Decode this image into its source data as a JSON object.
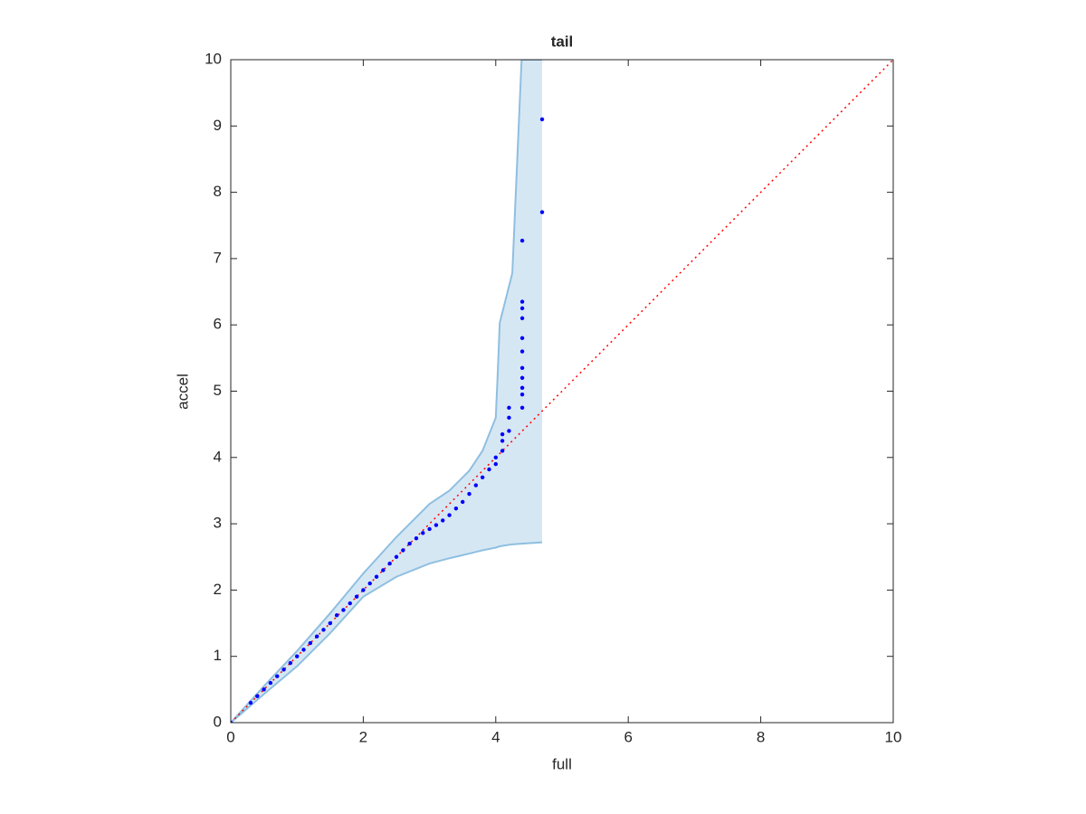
{
  "chart_data": {
    "type": "scatter",
    "title": "tail",
    "x_label": "full",
    "y_label": "accel",
    "xlim": [
      0,
      10
    ],
    "ylim": [
      0,
      10
    ],
    "xticks": [
      0,
      2,
      4,
      6,
      8,
      10
    ],
    "yticks": [
      0,
      1,
      2,
      3,
      4,
      5,
      6,
      7,
      8,
      9,
      10
    ],
    "grid": false,
    "band": {
      "fill_color": "#d6e7f4",
      "edge_color": "#8fbfe0",
      "x": [
        0,
        0.5,
        1,
        1.5,
        2,
        2.5,
        3,
        3.3,
        3.6,
        3.8,
        4.0,
        4.03,
        4.06,
        4.25,
        4.39,
        4.7
      ],
      "upper": [
        0,
        0.55,
        1.08,
        1.65,
        2.25,
        2.8,
        3.3,
        3.5,
        3.8,
        4.1,
        4.6,
        5.28,
        6.03,
        6.78,
        10,
        10
      ],
      "lower": [
        0,
        0.43,
        0.85,
        1.35,
        1.9,
        2.2,
        2.4,
        2.48,
        2.55,
        2.6,
        2.64,
        2.65,
        2.66,
        2.69,
        2.7,
        2.72
      ]
    },
    "reference": {
      "color": "#ff0000",
      "x": [
        0,
        10
      ],
      "y": [
        0,
        10
      ]
    },
    "points": {
      "color": "#0000ff",
      "x": [
        0,
        0.3,
        0.4,
        0.5,
        0.6,
        0.7,
        0.8,
        0.9,
        1.0,
        1.1,
        1.2,
        1.3,
        1.4,
        1.5,
        1.6,
        1.7,
        1.8,
        1.9,
        2.0,
        2.1,
        2.2,
        2.3,
        2.4,
        2.5,
        2.6,
        2.7,
        2.8,
        2.9,
        3.0,
        3.1,
        3.2,
        3.3,
        3.4,
        3.5,
        3.6,
        3.7,
        3.8,
        3.9,
        4.0,
        4.0,
        4.1,
        4.1,
        4.1,
        4.2,
        4.2,
        4.2,
        4.4,
        4.4,
        4.4,
        4.4,
        4.4,
        4.4,
        4.4,
        4.4,
        4.4,
        4.4,
        4.4,
        4.7,
        4.7
      ],
      "y": [
        0,
        0.3,
        0.4,
        0.5,
        0.6,
        0.7,
        0.8,
        0.9,
        1.0,
        1.1,
        1.2,
        1.3,
        1.4,
        1.5,
        1.62,
        1.7,
        1.8,
        1.9,
        2.0,
        2.1,
        2.2,
        2.3,
        2.4,
        2.5,
        2.6,
        2.7,
        2.78,
        2.86,
        2.92,
        2.98,
        3.05,
        3.13,
        3.23,
        3.33,
        3.45,
        3.58,
        3.7,
        3.82,
        3.9,
        4.0,
        4.1,
        4.25,
        4.35,
        4.4,
        4.6,
        4.75,
        4.75,
        4.95,
        5.05,
        5.2,
        5.35,
        5.6,
        5.8,
        6.1,
        6.25,
        6.35,
        7.27,
        7.7,
        9.1
      ]
    }
  }
}
